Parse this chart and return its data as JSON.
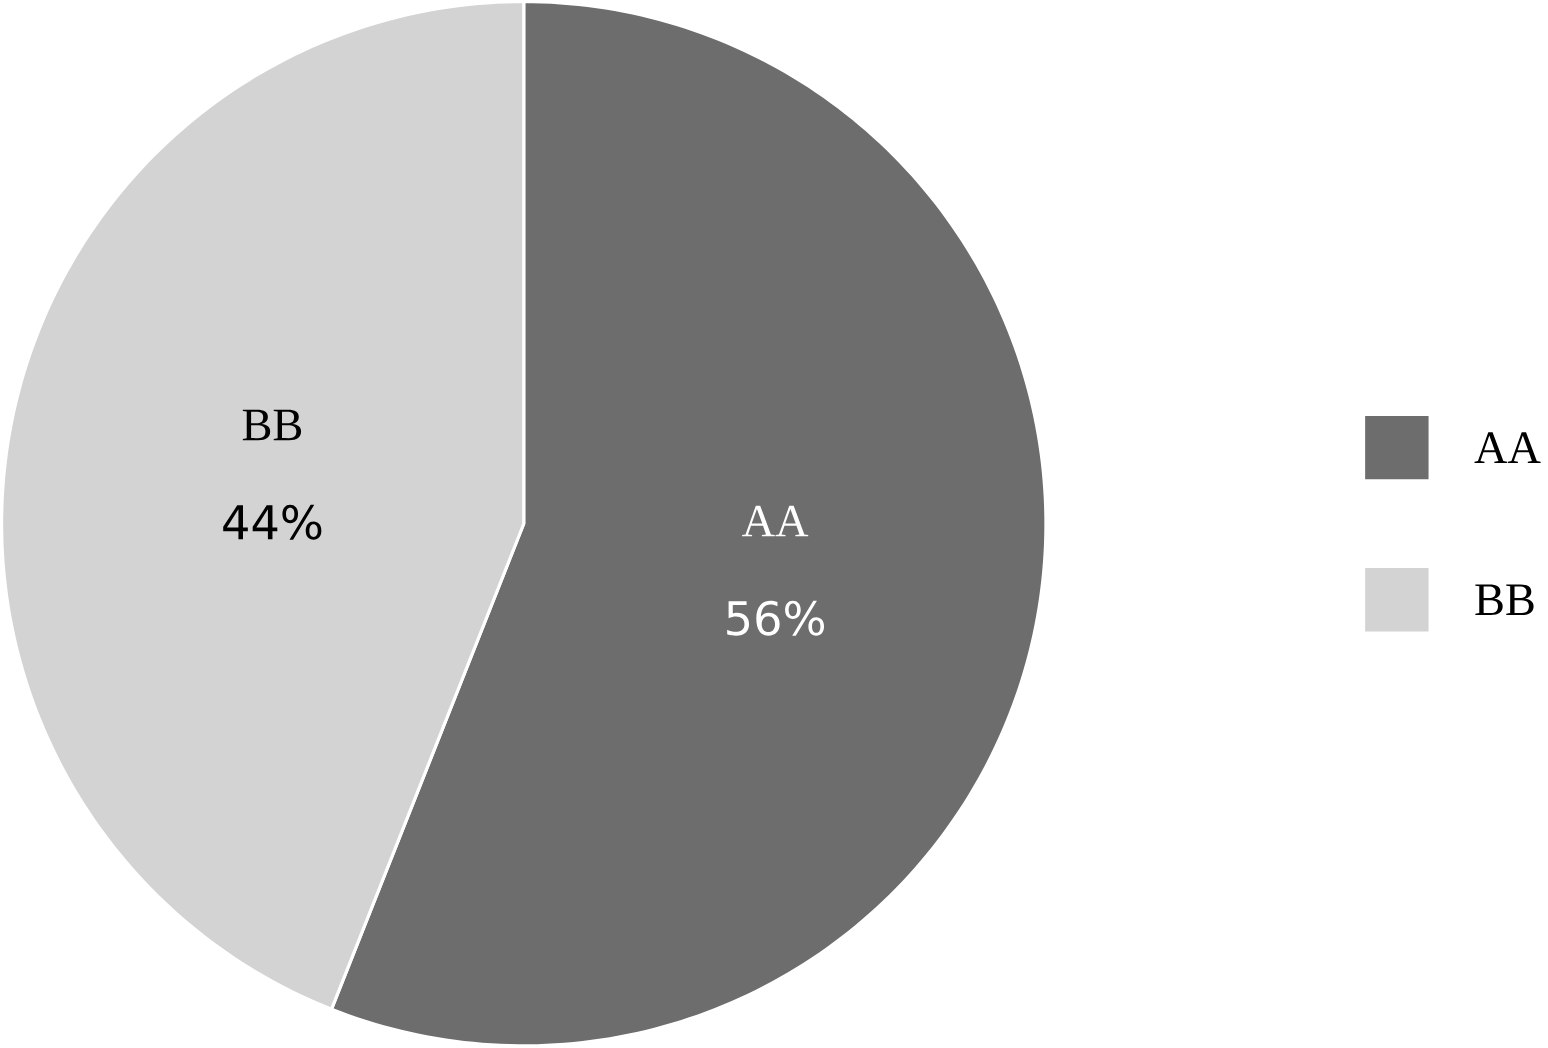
{
  "chart_data": {
    "type": "pie",
    "categories": [
      "AA",
      "BB"
    ],
    "values": [
      56,
      44
    ],
    "value_labels": [
      "56%",
      "44%"
    ],
    "colors": [
      "#6d6d6e",
      "#d3d3d3"
    ],
    "legend": "right"
  }
}
